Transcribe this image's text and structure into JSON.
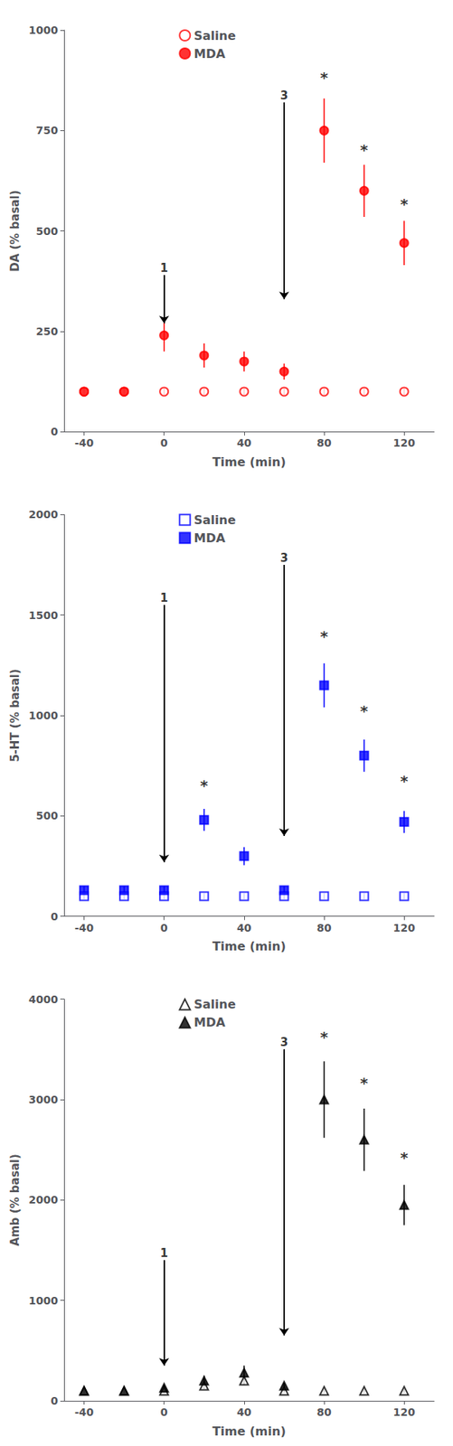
{
  "chart_data": [
    {
      "type": "scatter",
      "xlabel": "Time (min)",
      "ylabel": "DA (% basal)",
      "xlim": [
        -50,
        135
      ],
      "xticks": [
        -40,
        0,
        40,
        80,
        120
      ],
      "ylim": [
        0,
        1000
      ],
      "yticks": [
        0,
        250,
        500,
        750,
        1000
      ],
      "legend": "top",
      "series": [
        {
          "name": "Saline",
          "color": "#FF0000",
          "marker": "circle-open",
          "x": [
            -40,
            -20,
            0,
            20,
            40,
            60,
            80,
            100,
            120
          ],
          "values": [
            100,
            100,
            100,
            100,
            100,
            100,
            100,
            100,
            100
          ],
          "errors": [
            8,
            8,
            8,
            8,
            8,
            8,
            8,
            8,
            8
          ]
        },
        {
          "name": "MDA",
          "color": "#FF0000",
          "marker": "circle",
          "x": [
            -40,
            -20,
            0,
            20,
            40,
            60,
            80,
            100,
            120
          ],
          "values": [
            100,
            100,
            240,
            190,
            175,
            150,
            750,
            600,
            470
          ],
          "errors": [
            10,
            10,
            40,
            30,
            25,
            20,
            80,
            65,
            55
          ]
        }
      ],
      "annotations": [
        {
          "text": "1",
          "x": 0,
          "y": 390,
          "arrow_y": 270
        },
        {
          "text": "3",
          "x": 60,
          "y": 820,
          "arrow_y": 330
        },
        {
          "text": "*",
          "x": 80,
          "y": 870
        },
        {
          "text": "*",
          "x": 100,
          "y": 690
        },
        {
          "text": "*",
          "x": 120,
          "y": 555
        }
      ]
    },
    {
      "type": "scatter",
      "xlabel": "Time (min)",
      "ylabel": "5-HT (% basal)",
      "xlim": [
        -50,
        135
      ],
      "xticks": [
        -40,
        0,
        40,
        80,
        120
      ],
      "ylim": [
        0,
        2000
      ],
      "yticks": [
        0,
        500,
        1000,
        1500,
        2000
      ],
      "legend": "top",
      "series": [
        {
          "name": "Saline",
          "color": "#0000FF",
          "marker": "square-open",
          "x": [
            -40,
            -20,
            0,
            20,
            40,
            60,
            80,
            100,
            120
          ],
          "values": [
            100,
            100,
            100,
            100,
            100,
            100,
            100,
            100,
            100
          ],
          "errors": [
            15,
            15,
            15,
            15,
            15,
            15,
            15,
            15,
            15
          ]
        },
        {
          "name": "MDA",
          "color": "#0000FF",
          "marker": "square",
          "x": [
            -40,
            -20,
            0,
            20,
            40,
            60,
            80,
            100,
            120
          ],
          "values": [
            130,
            130,
            130,
            480,
            300,
            130,
            1150,
            800,
            470
          ],
          "errors": [
            20,
            20,
            20,
            55,
            45,
            20,
            110,
            80,
            55
          ]
        }
      ],
      "annotations": [
        {
          "text": "1",
          "x": 0,
          "y": 1550,
          "arrow_y": 270
        },
        {
          "text": "3",
          "x": 60,
          "y": 1750,
          "arrow_y": 400
        },
        {
          "text": "*",
          "x": 20,
          "y": 630
        },
        {
          "text": "*",
          "x": 80,
          "y": 1370
        },
        {
          "text": "*",
          "x": 100,
          "y": 1000
        },
        {
          "text": "*",
          "x": 120,
          "y": 650
        }
      ]
    },
    {
      "type": "scatter",
      "xlabel": "Time (min)",
      "ylabel": "Amb (% basal)",
      "xlim": [
        -50,
        135
      ],
      "xticks": [
        -40,
        0,
        40,
        80,
        120
      ],
      "ylim": [
        0,
        4000
      ],
      "yticks": [
        0,
        1000,
        2000,
        3000,
        4000
      ],
      "legend": "top",
      "series": [
        {
          "name": "Saline",
          "color": "#000000",
          "marker": "triangle-open",
          "x": [
            -40,
            -20,
            0,
            20,
            40,
            60,
            80,
            100,
            120
          ],
          "values": [
            100,
            100,
            100,
            150,
            200,
            100,
            100,
            100,
            100
          ],
          "errors": [
            20,
            20,
            20,
            30,
            40,
            20,
            20,
            20,
            20
          ]
        },
        {
          "name": "MDA",
          "color": "#000000",
          "marker": "triangle",
          "x": [
            -40,
            -20,
            0,
            20,
            40,
            60,
            80,
            100,
            120
          ],
          "values": [
            100,
            100,
            130,
            200,
            280,
            150,
            3000,
            2600,
            1950
          ],
          "errors": [
            20,
            20,
            30,
            50,
            70,
            30,
            380,
            310,
            200
          ]
        }
      ],
      "annotations": [
        {
          "text": "1",
          "x": 0,
          "y": 1400,
          "arrow_y": 350
        },
        {
          "text": "3",
          "x": 60,
          "y": 3500,
          "arrow_y": 650
        },
        {
          "text": "*",
          "x": 80,
          "y": 3580
        },
        {
          "text": "*",
          "x": 100,
          "y": 3120
        },
        {
          "text": "*",
          "x": 120,
          "y": 2380
        }
      ]
    }
  ]
}
